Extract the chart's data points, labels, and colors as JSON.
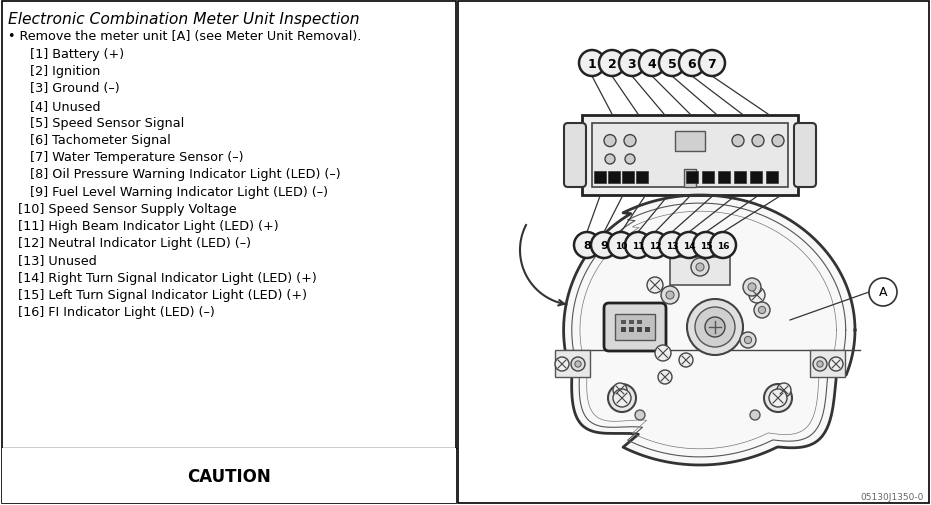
{
  "title": "Electronic Combination Meter Unit Inspection",
  "background_color": "#ffffff",
  "bullet_line": "Remove the meter unit [A] (see Meter Unit Removal).",
  "pin_list_indented": [
    "[1] Battery (+)",
    "[2] Ignition",
    "[3] Ground (–)",
    "[4] Unused",
    "[5] Speed Sensor Signal",
    "[6] Tachometer Signal",
    "[7] Water Temperature Sensor (–)",
    "[8] Oil Pressure Warning Indicator Light (LED) (–)",
    "[9] Fuel Level Warning Indicator Light (LED) (–)"
  ],
  "pin_list_normal": [
    "[10] Speed Sensor Supply Voltage",
    "[11] High Beam Indicator Light (LED) (+)",
    "[12] Neutral Indicator Light (LED) (–)",
    "[13] Unused",
    "[14] Right Turn Signal Indicator Light (LED) (+)",
    "[15] Left Turn Signal Indicator Light (LED) (+)",
    "[16] FI Indicator Light (LED) (–)"
  ],
  "caution_text": "CAUTION",
  "connector_pins_top": [
    "1",
    "2",
    "3",
    "4",
    "5",
    "6",
    "7"
  ],
  "connector_pins_bottom": [
    "8",
    "9",
    "10",
    "11",
    "12",
    "13",
    "14",
    "15",
    "16"
  ],
  "ref_code": "05130J1350-0"
}
